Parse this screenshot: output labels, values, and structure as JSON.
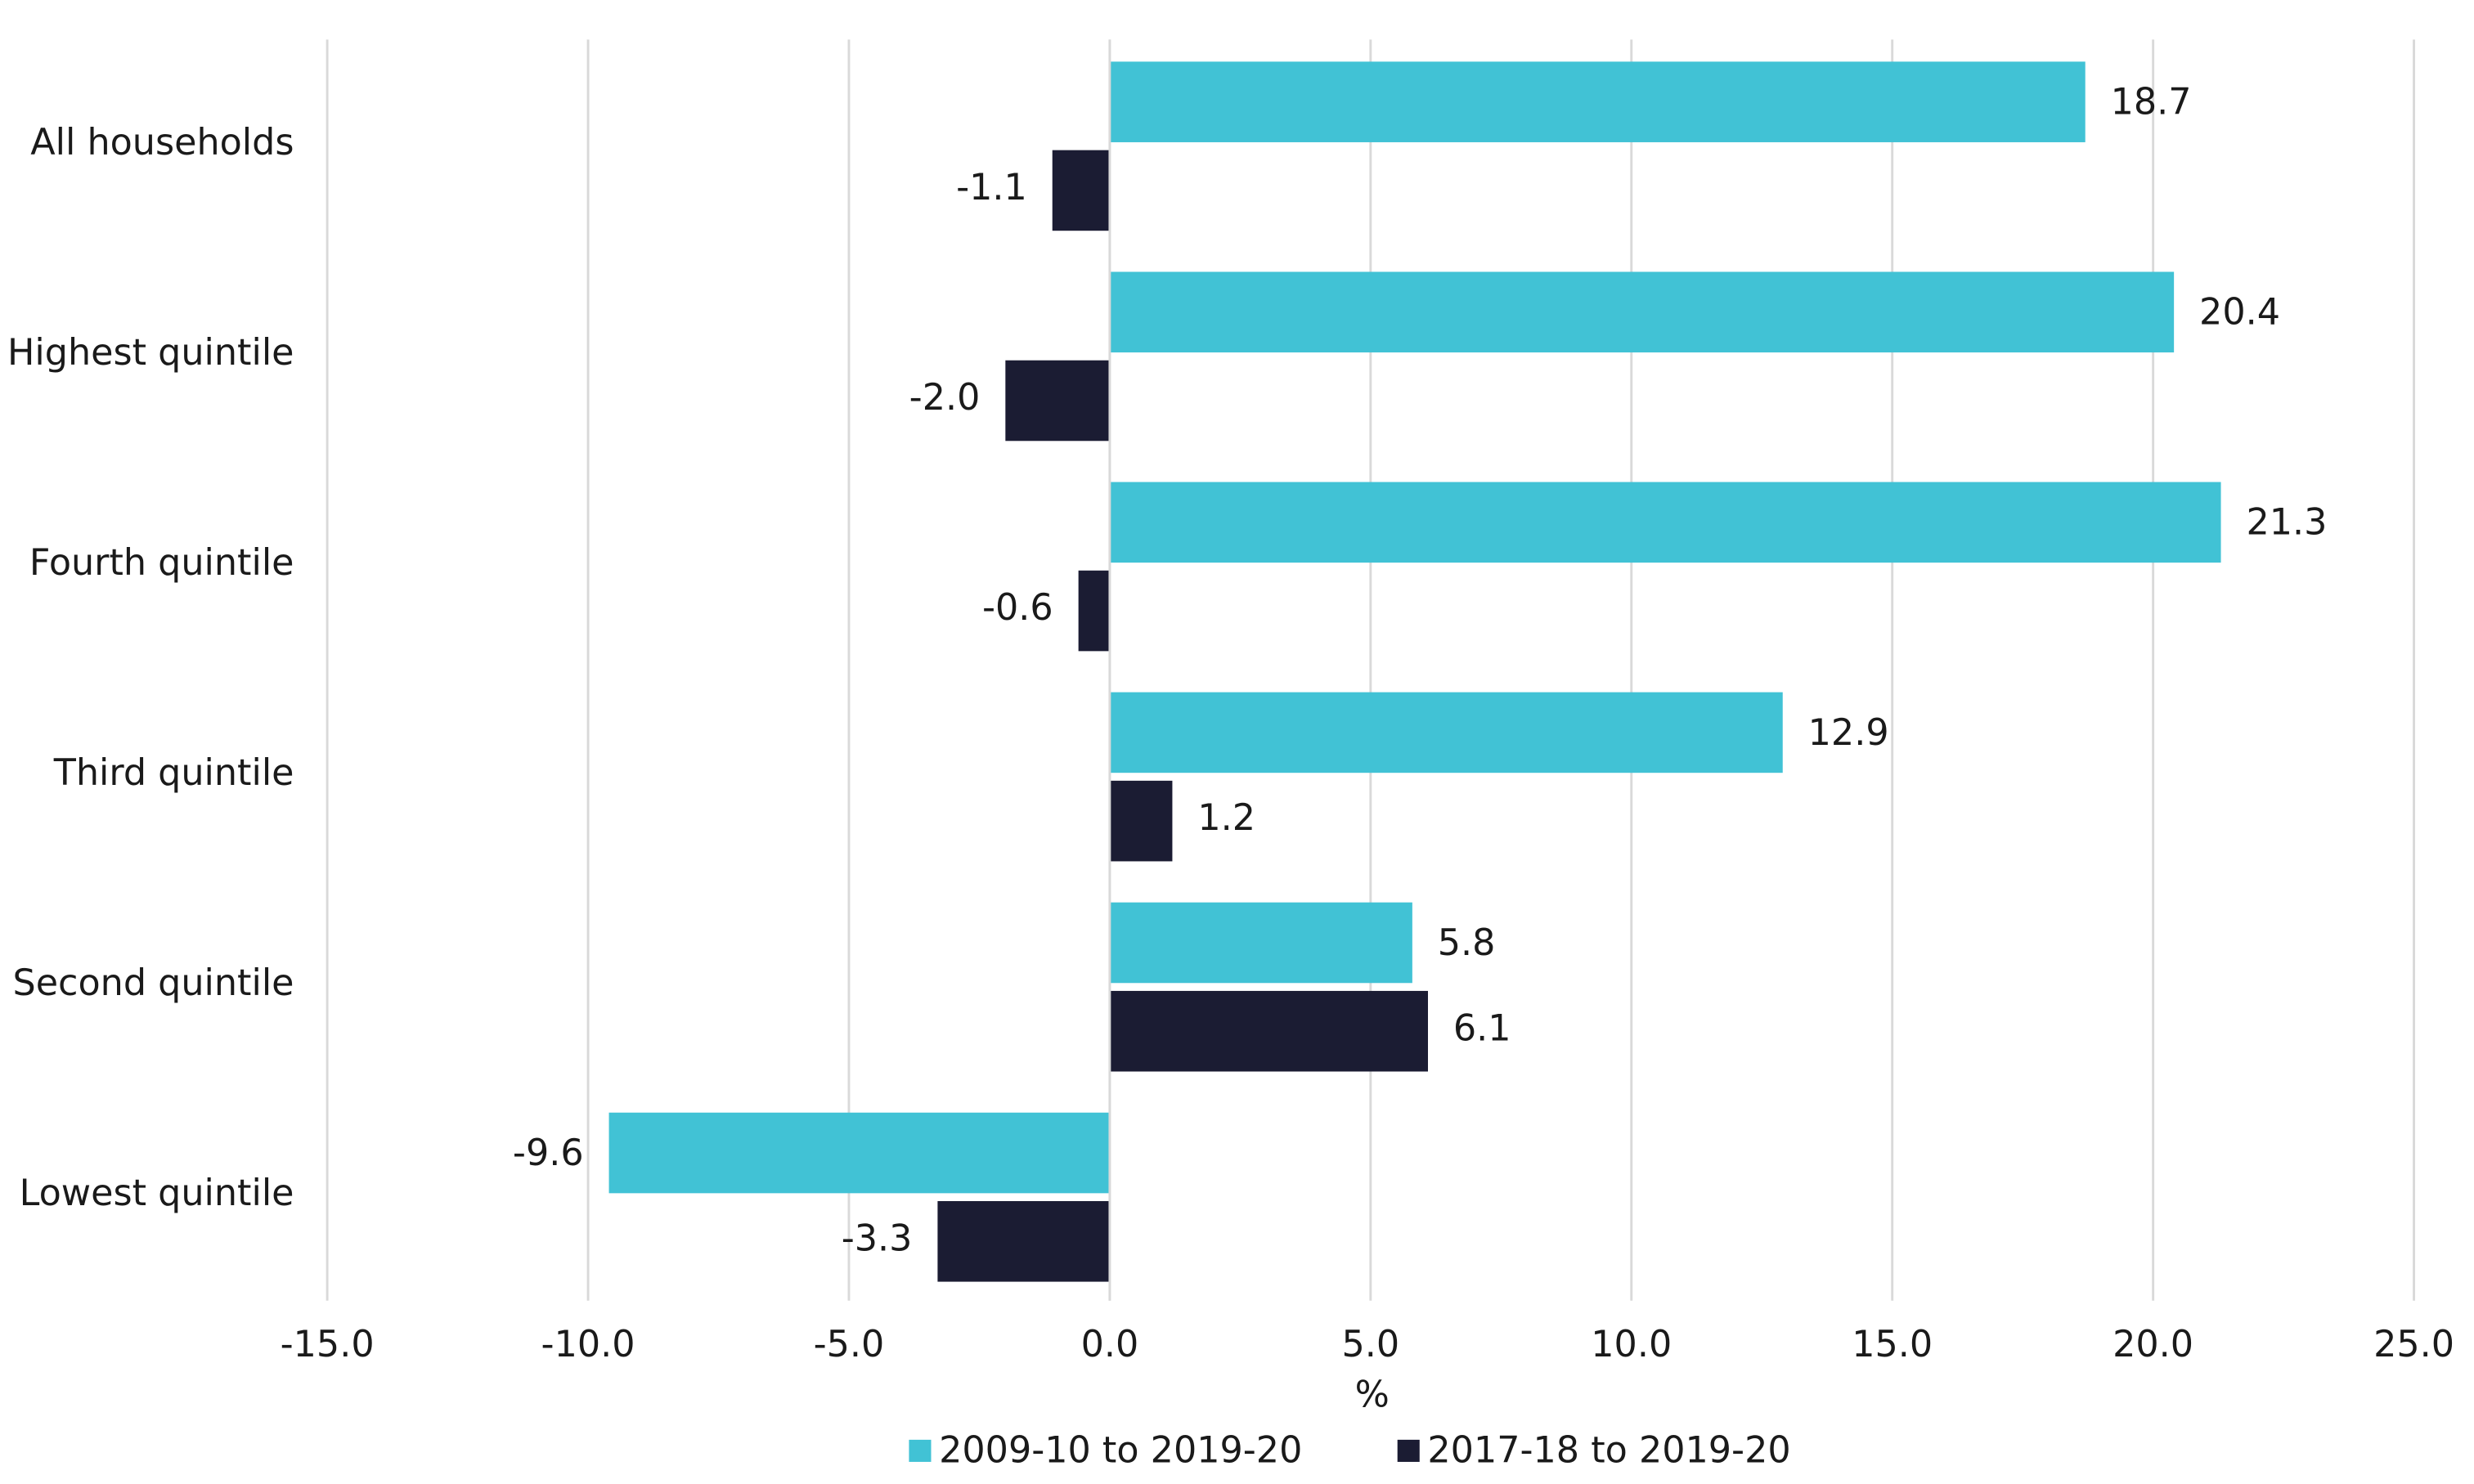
{
  "chart_data": {
    "type": "bar",
    "orientation": "horizontal",
    "x_label": "%",
    "categories": [
      "All households",
      "Highest quintile",
      "Fourth quintile",
      "Third quintile",
      "Second quintile",
      "Lowest quintile"
    ],
    "series": [
      {
        "name": "2009-10 to 2019-20",
        "color": "#41c2d5",
        "values": [
          18.7,
          20.4,
          21.3,
          12.9,
          5.8,
          -9.6
        ],
        "value_labels": [
          "18.7",
          "20.4",
          "21.3",
          "12.9",
          "5.8",
          "-9.6"
        ]
      },
      {
        "name": "2017-18 to 2019-20",
        "color": "#1b1c33",
        "values": [
          -1.1,
          -2.0,
          -0.6,
          1.2,
          6.1,
          -3.3
        ],
        "value_labels": [
          "-1.1",
          "-2.0",
          "-0.6",
          "1.2",
          "6.1",
          "-3.3"
        ]
      }
    ],
    "xlim": [
      -15,
      25
    ],
    "xticks": [
      {
        "value": -15,
        "label": "-15.0"
      },
      {
        "value": -10,
        "label": "-10.0"
      },
      {
        "value": -5,
        "label": "-5.0"
      },
      {
        "value": 0,
        "label": "0.0"
      },
      {
        "value": 5,
        "label": "5.0"
      },
      {
        "value": 10,
        "label": "10.0"
      },
      {
        "value": 15,
        "label": "15.0"
      },
      {
        "value": 20,
        "label": "20.0"
      },
      {
        "value": 25,
        "label": "25.0"
      }
    ],
    "grid": true,
    "legend": "bottom"
  }
}
